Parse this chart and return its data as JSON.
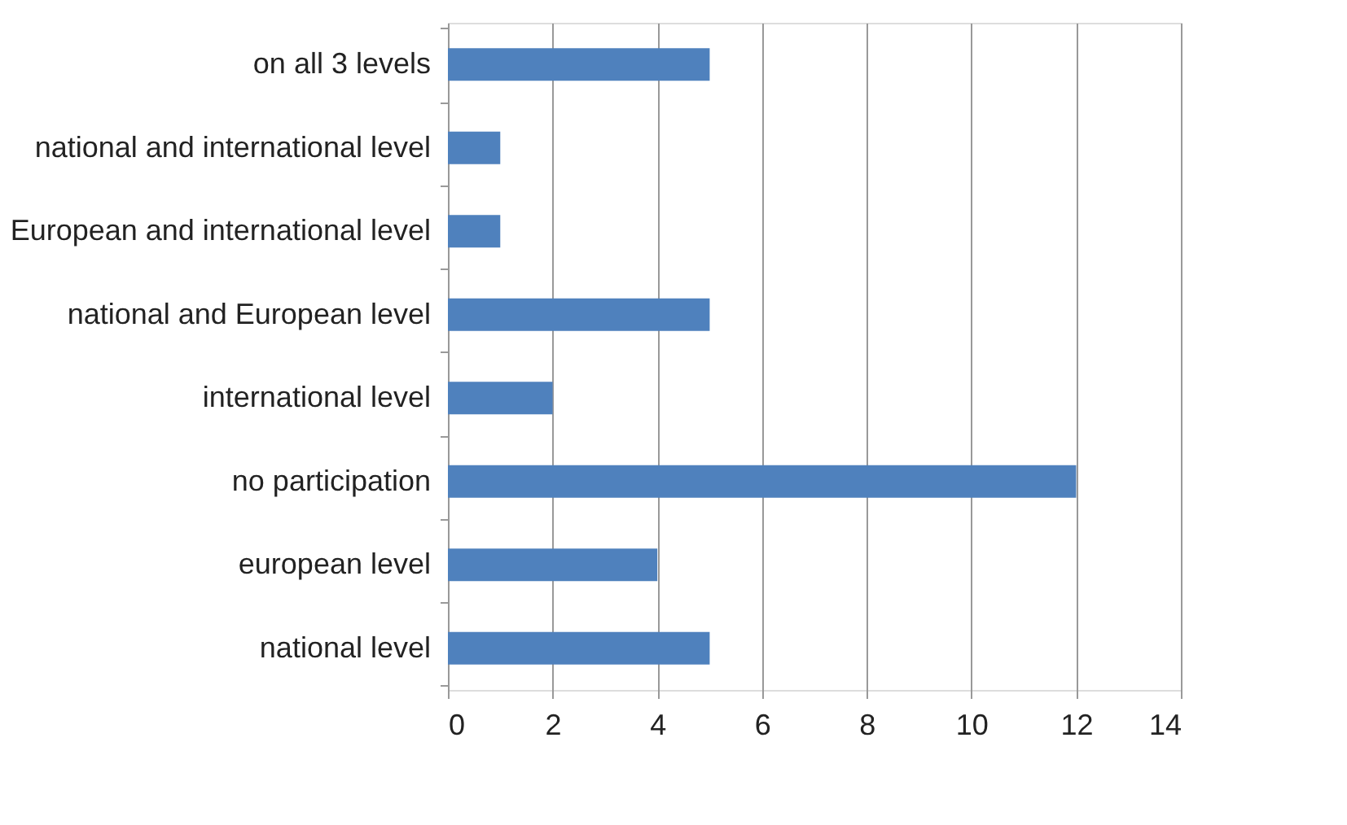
{
  "chart_data": {
    "type": "bar",
    "orientation": "horizontal",
    "categories": [
      "on all 3 levels",
      "national and international level",
      "European and international level",
      "national and European level",
      "international level",
      "no participation",
      "european level",
      "national level"
    ],
    "values": [
      5,
      1,
      1,
      5,
      2,
      12,
      4,
      5
    ],
    "color": "#4f81bd",
    "xlim": [
      0,
      14
    ],
    "xticks": [
      0,
      2,
      4,
      6,
      8,
      10,
      12,
      14
    ],
    "grid": "x"
  }
}
